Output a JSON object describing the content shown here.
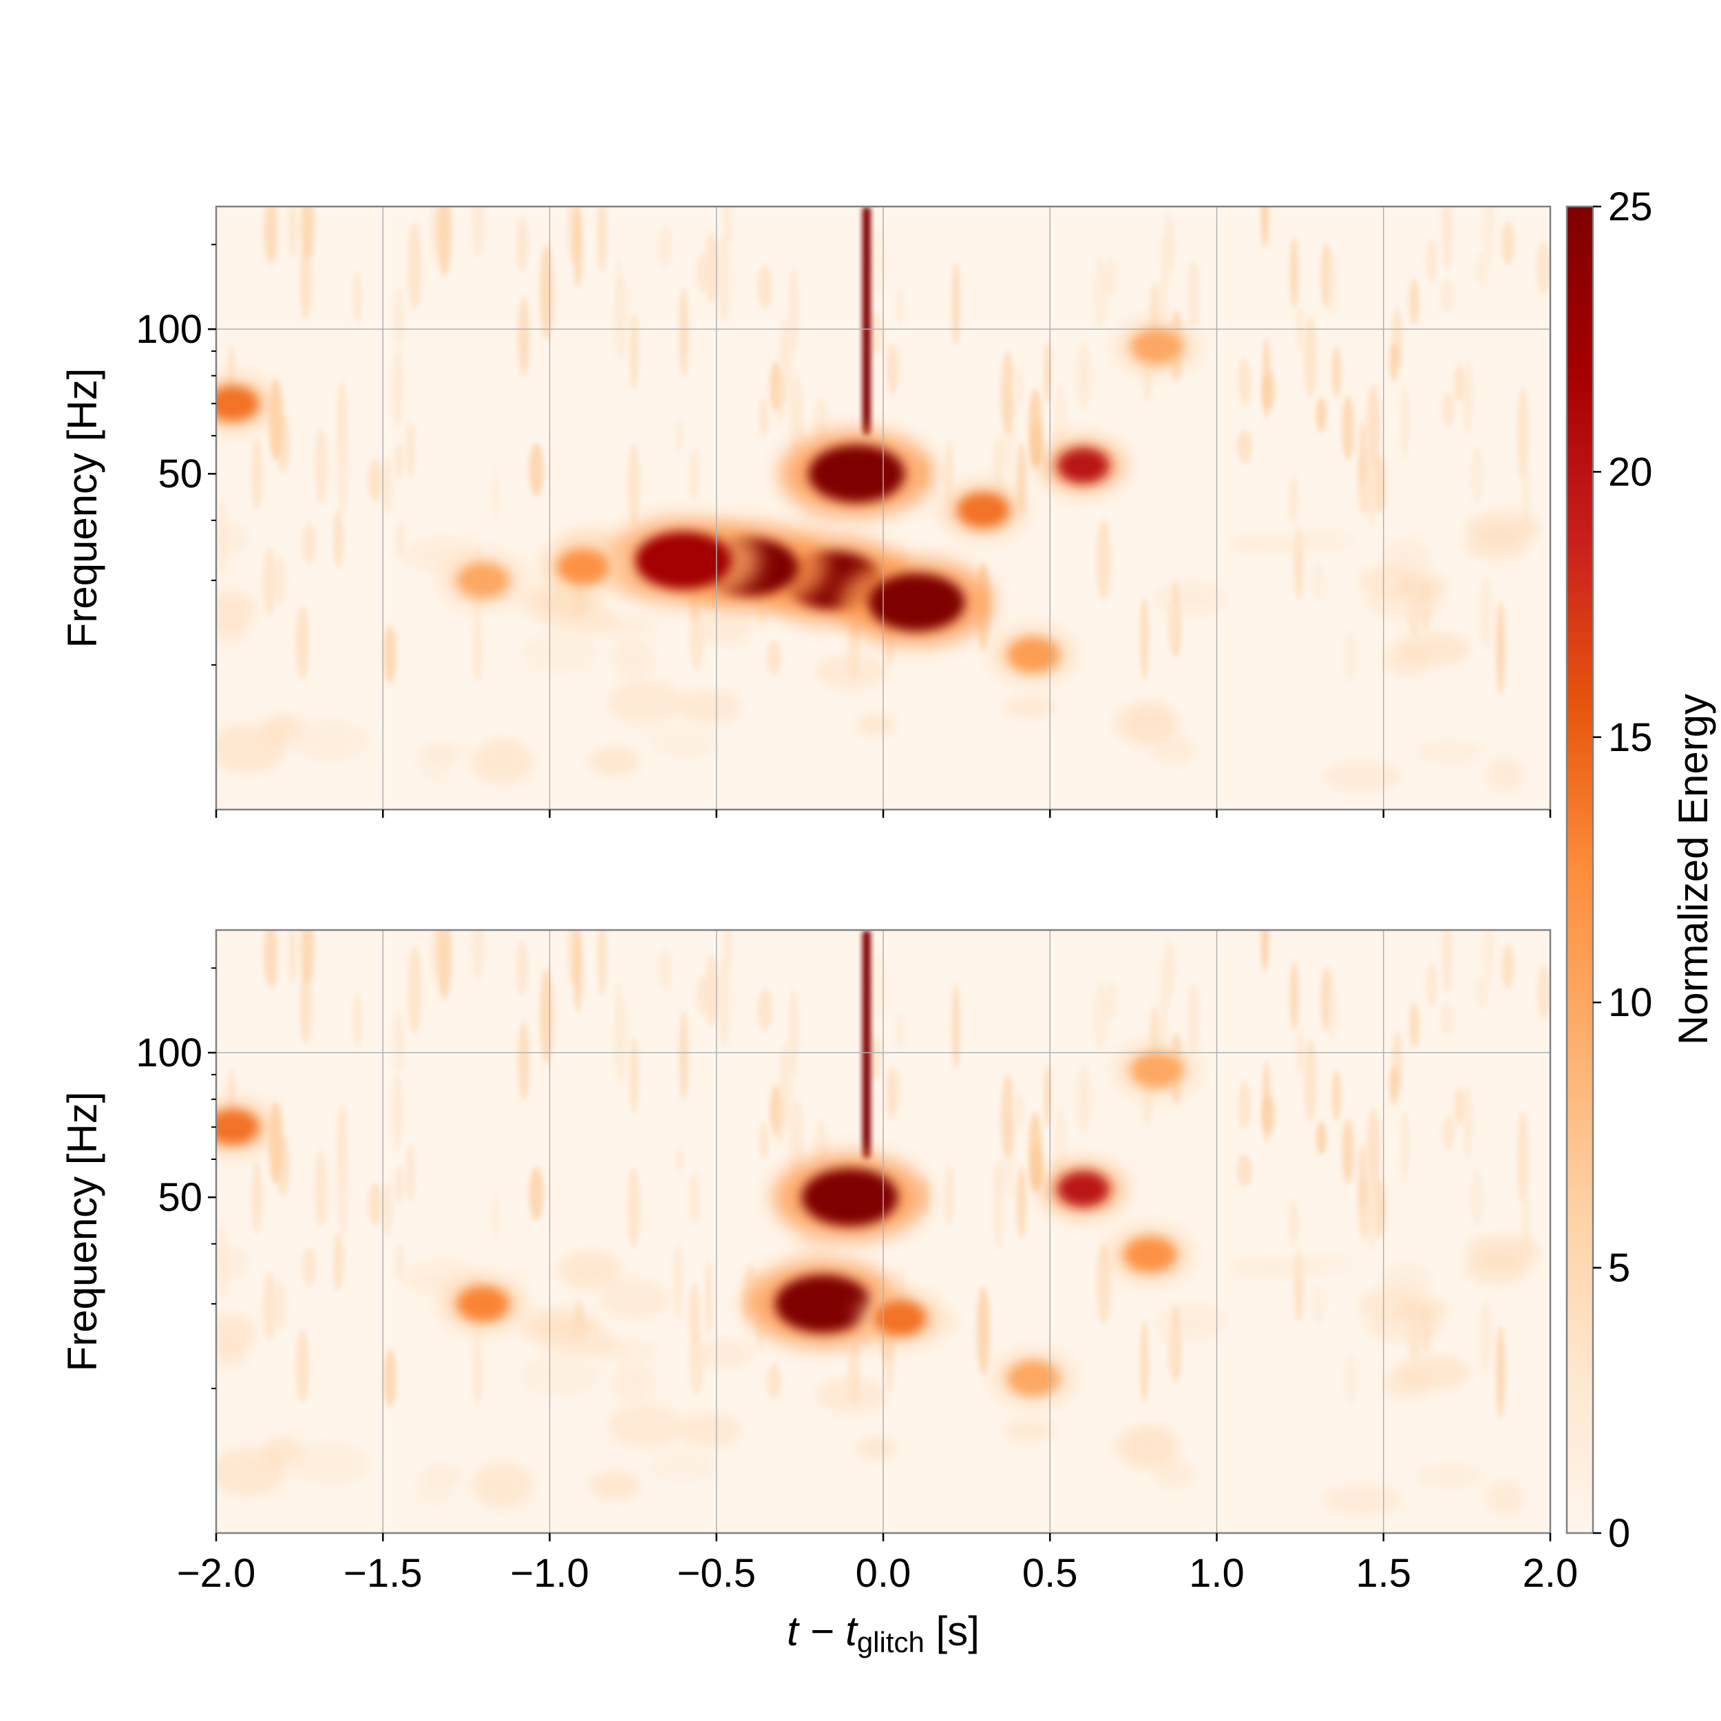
{
  "chart_data": [
    {
      "type": "heatmap",
      "panel": "top",
      "xlim": [
        -2.0,
        2.0
      ],
      "ylim": [
        10,
        180
      ],
      "yscale": "log",
      "grid": true,
      "ylabel": "Frequency [Hz]",
      "yticks": [
        50,
        100
      ],
      "ytick_labels": [
        "50",
        "100"
      ],
      "blobs": [
        {
          "t": -0.05,
          "f_low": 60,
          "f_high": 180,
          "level": 25,
          "desc": "vertical streak"
        },
        {
          "t": -0.08,
          "f": 50,
          "level": 25
        },
        {
          "t": -0.15,
          "f": 30,
          "level": 25
        },
        {
          "t": -0.4,
          "f": 32,
          "level": 25
        },
        {
          "t": -0.6,
          "f": 33,
          "level": 22
        },
        {
          "t": 0.1,
          "f": 27,
          "level": 25
        },
        {
          "t": -0.9,
          "f": 32,
          "level": 12
        },
        {
          "t": -1.2,
          "f": 30,
          "level": 10
        },
        {
          "t": 0.3,
          "f": 42,
          "level": 14
        },
        {
          "t": 0.45,
          "f": 21,
          "level": 11
        },
        {
          "t": 0.6,
          "f": 52,
          "level": 20
        },
        {
          "t": -1.95,
          "f": 70,
          "level": 14
        },
        {
          "t": 0.82,
          "f": 92,
          "level": 10
        }
      ]
    },
    {
      "type": "heatmap",
      "panel": "bottom",
      "xlim": [
        -2.0,
        2.0
      ],
      "ylim": [
        10,
        180
      ],
      "yscale": "log",
      "grid": true,
      "xlabel_main": "t − t",
      "xlabel_sub": "glitch",
      "xlabel_unit": " [s]",
      "ylabel": "Frequency [Hz]",
      "xticks": [
        -2.0,
        -1.5,
        -1.0,
        -0.5,
        0.0,
        0.5,
        1.0,
        1.5,
        2.0
      ],
      "xtick_labels": [
        "−2.0",
        "−1.5",
        "−1.0",
        "−0.5",
        "0.0",
        "0.5",
        "1.0",
        "1.5",
        "2.0"
      ],
      "yticks": [
        50,
        100
      ],
      "ytick_labels": [
        "50",
        "100"
      ],
      "blobs": [
        {
          "t": -0.05,
          "f_low": 60,
          "f_high": 180,
          "level": 25,
          "desc": "vertical streak"
        },
        {
          "t": -0.1,
          "f": 50,
          "level": 25
        },
        {
          "t": -0.18,
          "f": 30,
          "level": 25
        },
        {
          "t": 0.05,
          "f": 28,
          "level": 14
        },
        {
          "t": -1.2,
          "f": 30,
          "level": 13
        },
        {
          "t": 0.45,
          "f": 21,
          "level": 10
        },
        {
          "t": 0.6,
          "f": 52,
          "level": 20
        },
        {
          "t": 0.8,
          "f": 38,
          "level": 12
        },
        {
          "t": -1.95,
          "f": 70,
          "level": 14
        },
        {
          "t": 0.82,
          "f": 92,
          "level": 10
        }
      ]
    }
  ],
  "colorbar": {
    "label": "Normalized Energy",
    "range": [
      0,
      25
    ],
    "ticks": [
      0,
      5,
      10,
      15,
      20,
      25
    ],
    "tick_labels": [
      "0",
      "5",
      "10",
      "15",
      "20",
      "25"
    ],
    "colormap": [
      "#fff5eb",
      "#fee6ce",
      "#fdd0a2",
      "#fdae6b",
      "#fd8d3c",
      "#e6550d",
      "#c81e1e",
      "#a50000",
      "#7f0000"
    ]
  }
}
